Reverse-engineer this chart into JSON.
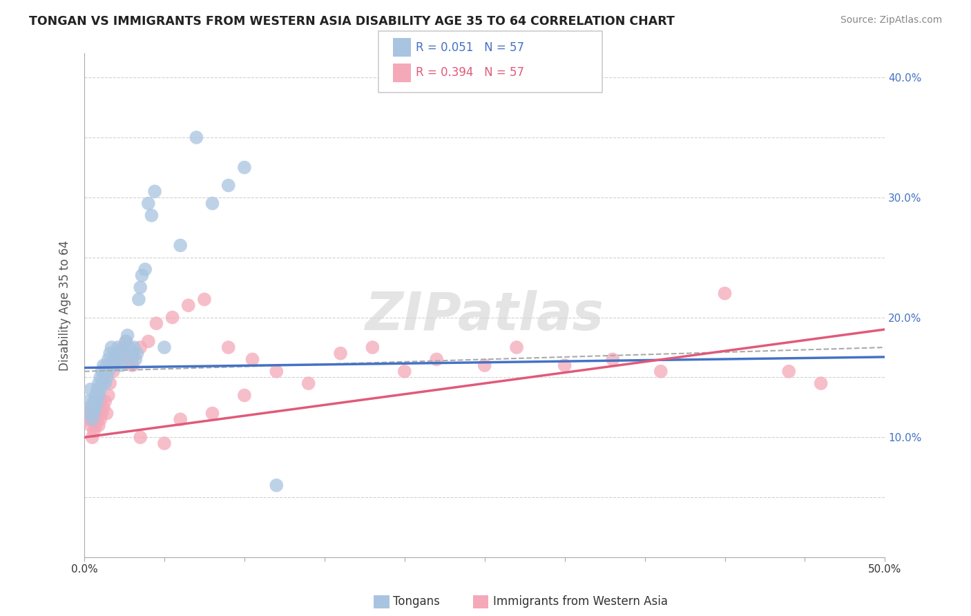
{
  "title": "TONGAN VS IMMIGRANTS FROM WESTERN ASIA DISABILITY AGE 35 TO 64 CORRELATION CHART",
  "source_text": "Source: ZipAtlas.com",
  "ylabel": "Disability Age 35 to 64",
  "r_tongan": 0.051,
  "n_tongan": 57,
  "r_western_asia": 0.394,
  "n_western_asia": 57,
  "xlim": [
    0.0,
    0.5
  ],
  "ylim": [
    0.0,
    0.42
  ],
  "xticks": [
    0.0,
    0.05,
    0.1,
    0.15,
    0.2,
    0.25,
    0.3,
    0.35,
    0.4,
    0.45,
    0.5
  ],
  "yticks": [
    0.0,
    0.05,
    0.1,
    0.15,
    0.2,
    0.25,
    0.3,
    0.35,
    0.4
  ],
  "xticklabels": [
    "0.0%",
    "",
    "",
    "",
    "",
    "",
    "",
    "",
    "",
    "",
    "50.0%"
  ],
  "yticklabels": [
    "",
    "",
    "10.0%",
    "",
    "20.0%",
    "",
    "30.0%",
    "",
    "40.0%"
  ],
  "grid_color": "#cccccc",
  "background_color": "#ffffff",
  "tongan_color": "#a8c4e0",
  "western_asia_color": "#f4a8b8",
  "tongan_line_color": "#4472c4",
  "western_asia_line_color": "#e05a7a",
  "watermark": "ZIPatlas",
  "tongan_x": [
    0.002,
    0.003,
    0.004,
    0.005,
    0.005,
    0.006,
    0.006,
    0.007,
    0.007,
    0.008,
    0.008,
    0.009,
    0.009,
    0.01,
    0.01,
    0.011,
    0.011,
    0.012,
    0.012,
    0.013,
    0.013,
    0.014,
    0.014,
    0.015,
    0.015,
    0.016,
    0.017,
    0.018,
    0.019,
    0.02,
    0.021,
    0.022,
    0.023,
    0.024,
    0.025,
    0.026,
    0.027,
    0.028,
    0.029,
    0.03,
    0.031,
    0.032,
    0.033,
    0.034,
    0.035,
    0.036,
    0.038,
    0.04,
    0.042,
    0.044,
    0.05,
    0.06,
    0.07,
    0.08,
    0.09,
    0.1,
    0.12
  ],
  "tongan_y": [
    0.13,
    0.12,
    0.14,
    0.115,
    0.125,
    0.13,
    0.12,
    0.135,
    0.125,
    0.14,
    0.13,
    0.145,
    0.135,
    0.15,
    0.14,
    0.155,
    0.145,
    0.16,
    0.15,
    0.155,
    0.145,
    0.16,
    0.15,
    0.165,
    0.155,
    0.17,
    0.175,
    0.16,
    0.165,
    0.17,
    0.175,
    0.165,
    0.16,
    0.17,
    0.175,
    0.18,
    0.185,
    0.175,
    0.165,
    0.17,
    0.175,
    0.165,
    0.17,
    0.215,
    0.225,
    0.235,
    0.24,
    0.295,
    0.285,
    0.305,
    0.175,
    0.26,
    0.35,
    0.295,
    0.31,
    0.325,
    0.06
  ],
  "western_asia_x": [
    0.002,
    0.003,
    0.004,
    0.004,
    0.005,
    0.005,
    0.006,
    0.006,
    0.007,
    0.007,
    0.008,
    0.008,
    0.009,
    0.009,
    0.01,
    0.01,
    0.011,
    0.012,
    0.013,
    0.014,
    0.015,
    0.016,
    0.018,
    0.02,
    0.022,
    0.024,
    0.026,
    0.03,
    0.035,
    0.04,
    0.045,
    0.055,
    0.065,
    0.075,
    0.09,
    0.105,
    0.12,
    0.14,
    0.16,
    0.18,
    0.2,
    0.22,
    0.25,
    0.27,
    0.3,
    0.33,
    0.36,
    0.4,
    0.44,
    0.46,
    0.025,
    0.03,
    0.035,
    0.05,
    0.06,
    0.08,
    0.1
  ],
  "western_asia_y": [
    0.115,
    0.125,
    0.11,
    0.12,
    0.1,
    0.115,
    0.105,
    0.12,
    0.11,
    0.125,
    0.115,
    0.12,
    0.11,
    0.125,
    0.115,
    0.13,
    0.12,
    0.125,
    0.13,
    0.12,
    0.135,
    0.145,
    0.155,
    0.165,
    0.17,
    0.175,
    0.18,
    0.16,
    0.175,
    0.18,
    0.195,
    0.2,
    0.21,
    0.215,
    0.175,
    0.165,
    0.155,
    0.145,
    0.17,
    0.175,
    0.155,
    0.165,
    0.16,
    0.175,
    0.16,
    0.165,
    0.155,
    0.22,
    0.155,
    0.145,
    0.165,
    0.165,
    0.1,
    0.095,
    0.115,
    0.12,
    0.135
  ],
  "tongan_trendline": [
    0.158,
    0.167
  ],
  "western_asia_trendline": [
    0.1,
    0.19
  ],
  "dashed_trendline": [
    0.155,
    0.175
  ]
}
